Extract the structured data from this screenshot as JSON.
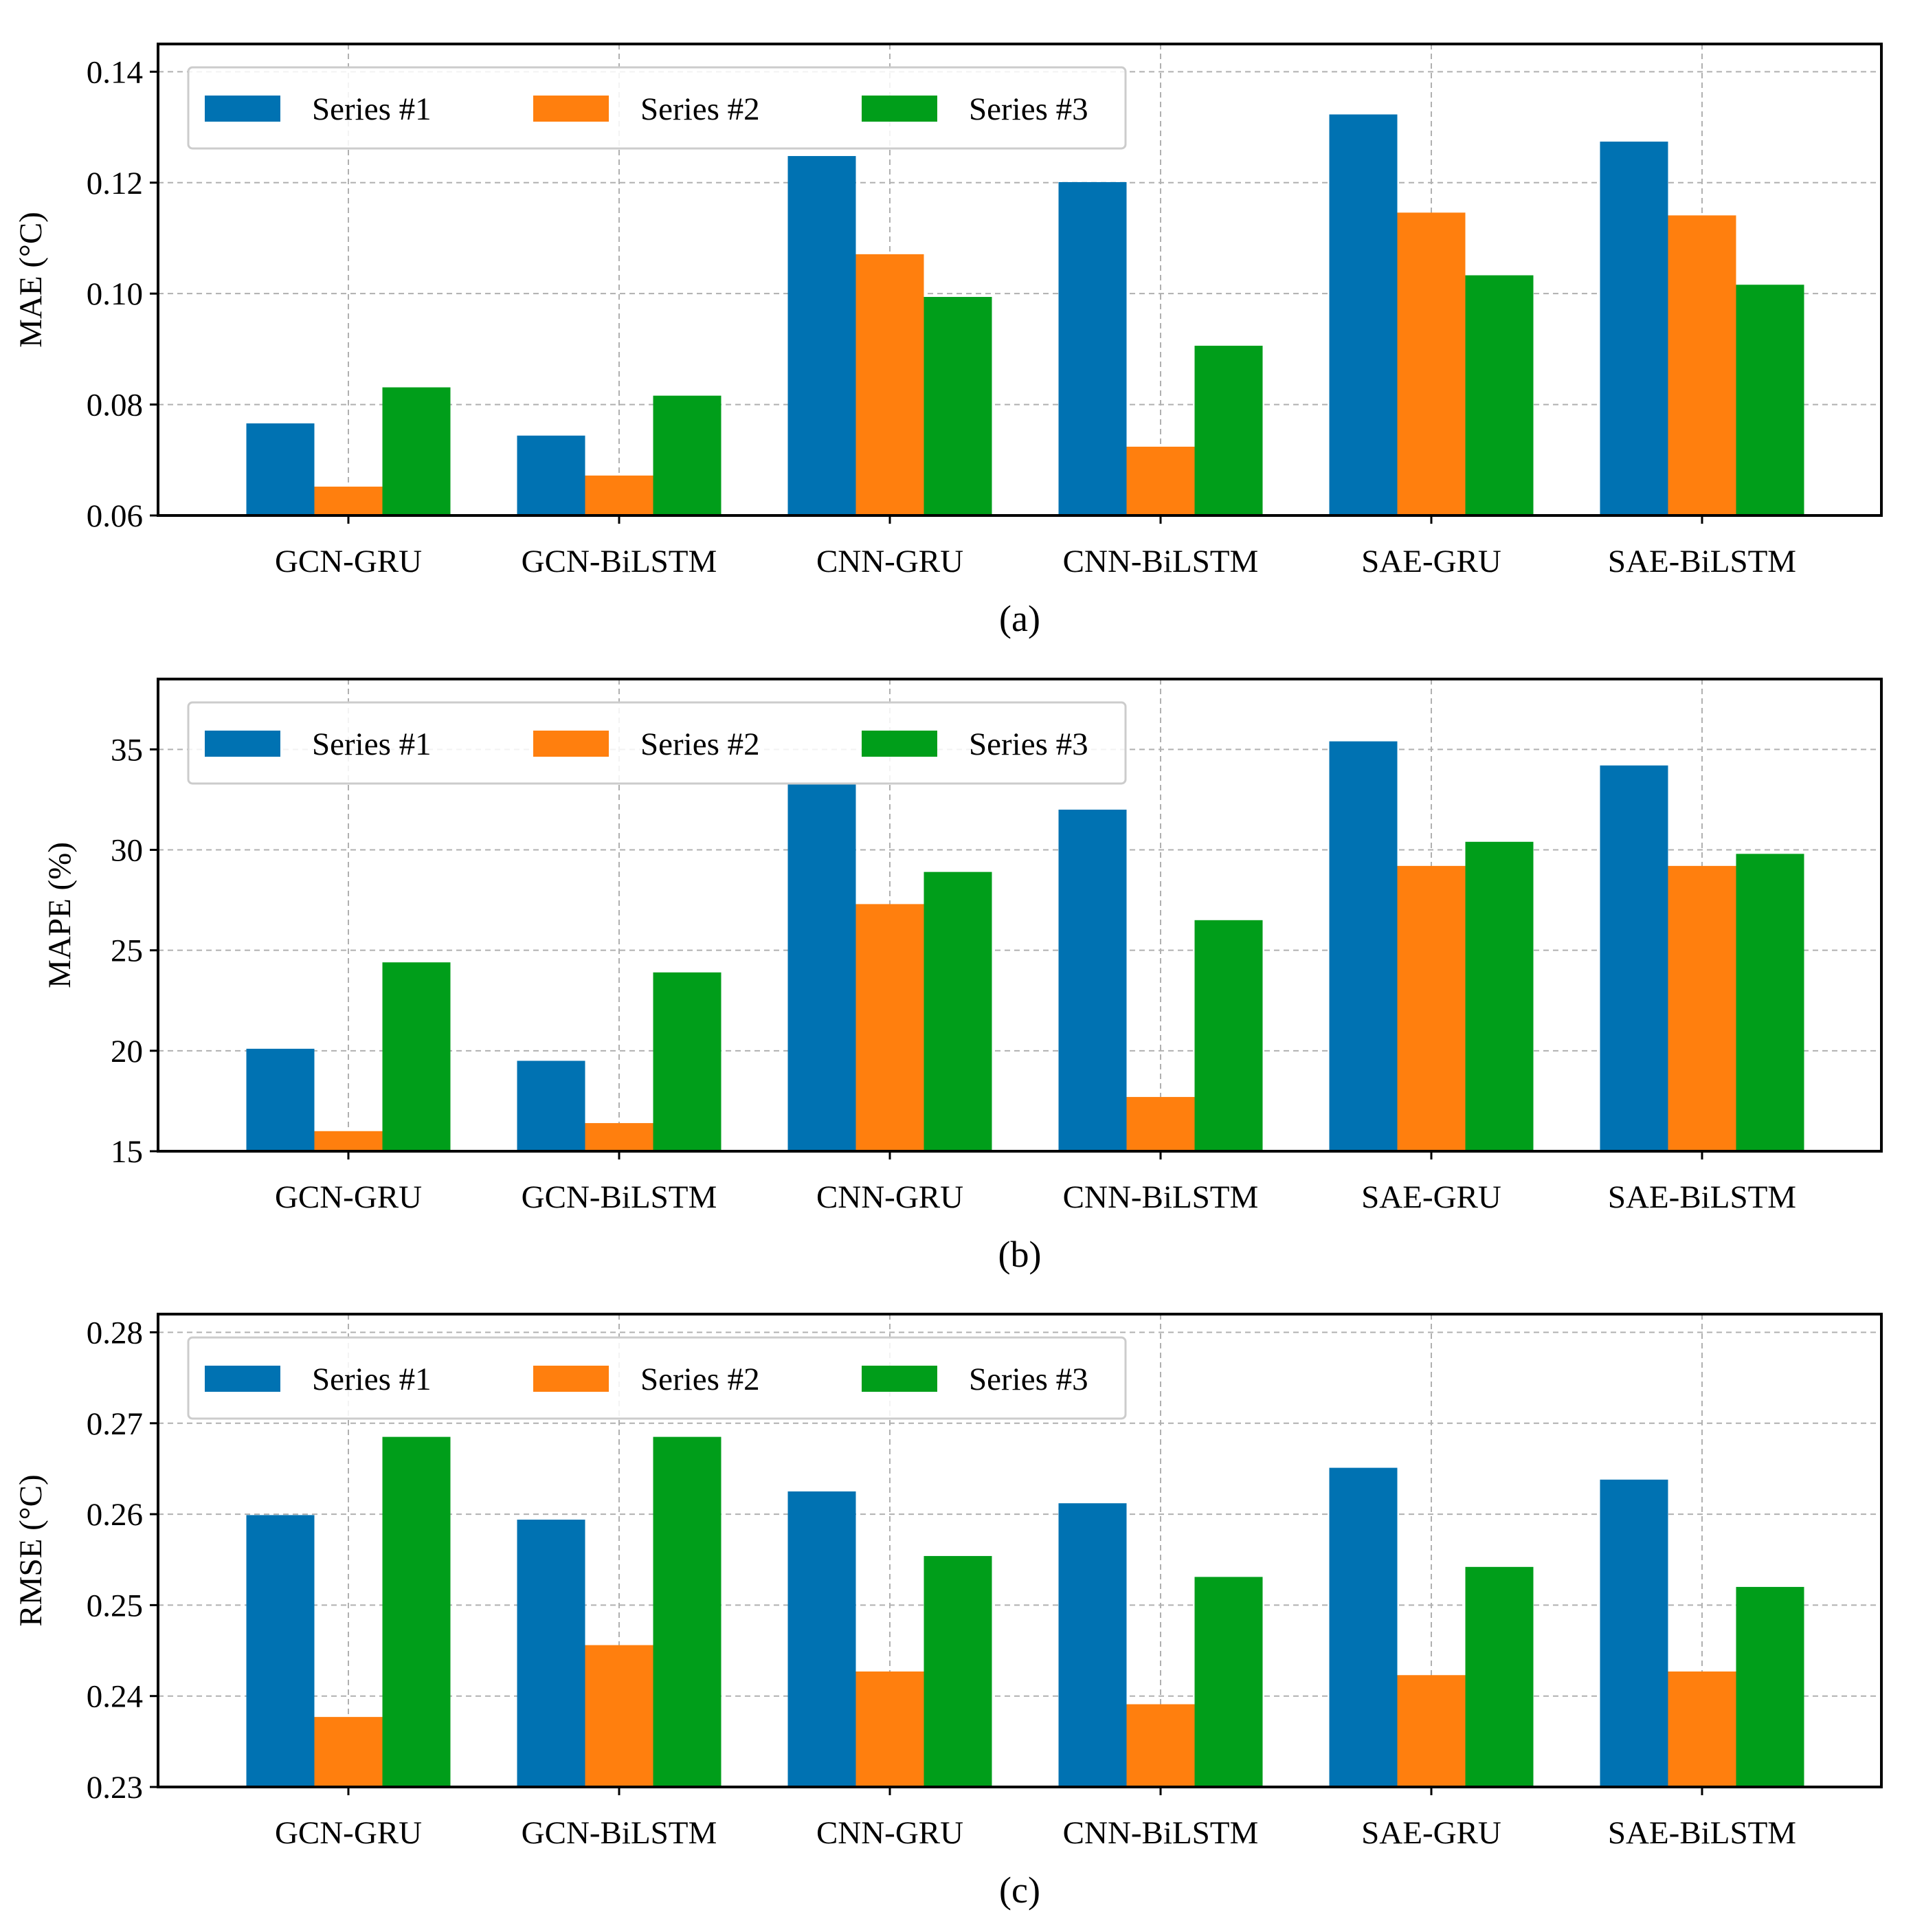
{
  "chart_data": [
    {
      "type": "bar",
      "caption": "(a)",
      "ylabel": "MAE (°C)",
      "categories": [
        "GCN-GRU",
        "GCN-BiLSTM",
        "CNN-GRU",
        "CNN-BiLSTM",
        "SAE-GRU",
        "SAE-BiLSTM"
      ],
      "series": [
        {
          "name": "Series #1",
          "color": "#0072b2",
          "values": [
            0.0766,
            0.0744,
            0.1248,
            0.1201,
            0.1323,
            0.1274
          ]
        },
        {
          "name": "Series #2",
          "color": "#ff7f0e",
          "values": [
            0.0652,
            0.0672,
            0.1071,
            0.0724,
            0.1146,
            0.1141
          ]
        },
        {
          "name": "Series #3",
          "color": "#009e1a",
          "values": [
            0.0831,
            0.0816,
            0.0994,
            0.0906,
            0.1033,
            0.1016
          ]
        }
      ],
      "ylim": [
        0.06,
        0.145
      ],
      "yticks": [
        0.06,
        0.08,
        0.1,
        0.12,
        0.14
      ],
      "ytick_labels": [
        "0.06",
        "0.08",
        "0.10",
        "0.12",
        "0.14"
      ],
      "grid": true,
      "legend_placement": "top-left"
    },
    {
      "type": "bar",
      "caption": "(b)",
      "ylabel": "MAPE (%)",
      "categories": [
        "GCN-GRU",
        "GCN-BiLSTM",
        "CNN-GRU",
        "CNN-BiLSTM",
        "SAE-GRU",
        "SAE-BiLSTM"
      ],
      "series": [
        {
          "name": "Series #1",
          "color": "#0072b2",
          "values": [
            20.1,
            19.5,
            33.3,
            32.0,
            35.4,
            34.2
          ]
        },
        {
          "name": "Series #2",
          "color": "#ff7f0e",
          "values": [
            16.0,
            16.4,
            27.3,
            17.7,
            29.2,
            29.2
          ]
        },
        {
          "name": "Series #3",
          "color": "#009e1a",
          "values": [
            24.4,
            23.9,
            28.9,
            26.5,
            30.4,
            29.8
          ]
        }
      ],
      "ylim": [
        15,
        38.5
      ],
      "yticks": [
        15,
        20,
        25,
        30,
        35
      ],
      "ytick_labels": [
        "15",
        "20",
        "25",
        "30",
        "35"
      ],
      "grid": true,
      "legend_placement": "top-left"
    },
    {
      "type": "bar",
      "caption": "(c)",
      "ylabel": "RMSE (°C)",
      "categories": [
        "GCN-GRU",
        "GCN-BiLSTM",
        "CNN-GRU",
        "CNN-BiLSTM",
        "SAE-GRU",
        "SAE-BiLSTM"
      ],
      "series": [
        {
          "name": "Series #1",
          "color": "#0072b2",
          "values": [
            0.2599,
            0.2594,
            0.2625,
            0.2612,
            0.2651,
            0.2638
          ]
        },
        {
          "name": "Series #2",
          "color": "#ff7f0e",
          "values": [
            0.2377,
            0.2456,
            0.2427,
            0.2391,
            0.2423,
            0.2427
          ]
        },
        {
          "name": "Series #3",
          "color": "#009e1a",
          "values": [
            0.2685,
            0.2685,
            0.2554,
            0.2531,
            0.2542,
            0.252
          ]
        }
      ],
      "ylim": [
        0.23,
        0.282
      ],
      "yticks": [
        0.23,
        0.24,
        0.25,
        0.26,
        0.27,
        0.28
      ],
      "ytick_labels": [
        "0.23",
        "0.24",
        "0.25",
        "0.26",
        "0.27",
        "0.28"
      ],
      "grid": true,
      "legend_placement": "top-left"
    }
  ]
}
